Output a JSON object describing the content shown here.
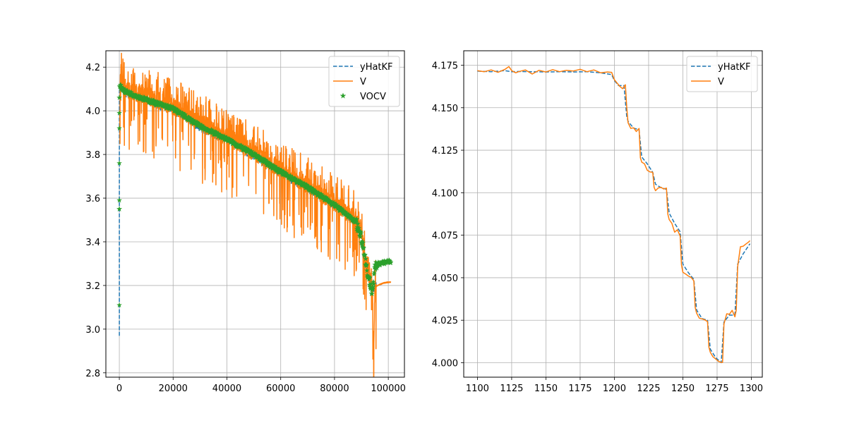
{
  "chart_data": [
    {
      "type": "line",
      "title": "",
      "xlabel": "",
      "ylabel": "",
      "xlim": [
        -5000,
        106000
      ],
      "ylim": [
        2.78,
        4.275
      ],
      "grid": true,
      "legend": "top-right",
      "xticks": [
        0,
        20000,
        40000,
        60000,
        80000,
        100000
      ],
      "xtick_labels": [
        "0",
        "20000",
        "40000",
        "60000",
        "80000",
        "100000"
      ],
      "yticks": [
        2.8,
        3.0,
        3.2,
        3.4,
        3.6,
        3.8,
        4.0,
        4.2
      ],
      "ytick_labels": [
        "2.8",
        "3.0",
        "3.2",
        "3.4",
        "3.6",
        "3.8",
        "4.0",
        "4.2"
      ],
      "series": [
        {
          "name": "yHatKF",
          "style": "dashed",
          "color": "#1f77b4",
          "x": [
            0,
            0,
            0,
            0,
            0,
            500,
            2000,
            10000,
            20000,
            30000,
            40000,
            50000,
            60000,
            70000,
            80000,
            88000,
            90000,
            91000,
            92000,
            93000,
            94000,
            94500,
            95000,
            96000,
            98000,
            100000,
            101000
          ],
          "y": [
            2.97,
            3.5,
            3.9,
            4.05,
            4.1,
            4.1,
            4.08,
            4.04,
            4.0,
            3.92,
            3.86,
            3.79,
            3.71,
            3.64,
            3.56,
            3.49,
            3.42,
            3.35,
            3.27,
            3.22,
            3.18,
            3.17,
            3.2,
            3.2,
            3.21,
            3.215,
            3.215
          ]
        },
        {
          "name": "V",
          "style": "solid",
          "color": "#ff7f0e",
          "x": [
            0,
            500,
            2000,
            10000,
            20000,
            30000,
            40000,
            50000,
            60000,
            70000,
            80000,
            88000,
            90000,
            92000,
            94000,
            94500,
            95000,
            96000,
            98000,
            100000,
            101000
          ],
          "y": [
            4.1,
            4.15,
            4.1,
            4.07,
            4.02,
            3.95,
            3.88,
            3.81,
            3.73,
            3.66,
            3.58,
            3.5,
            3.43,
            3.29,
            3.2,
            2.86,
            3.19,
            3.2,
            3.21,
            3.215,
            3.215
          ],
          "min_envelope": [
            3.95,
            3.88,
            3.76,
            3.7,
            3.62,
            3.56,
            3.5,
            3.4,
            3.3,
            3.2,
            3.0,
            2.86
          ],
          "max_envelope": [
            4.21,
            4.2,
            4.15,
            4.08,
            4.0,
            3.93,
            3.88,
            3.8,
            3.72,
            3.65,
            3.58,
            3.5
          ]
        },
        {
          "name": "VOCV",
          "style": "star-markers",
          "color": "#2ca02c",
          "x": [
            0,
            0,
            0,
            0,
            0,
            0,
            0,
            0,
            500,
            2000,
            10000,
            20000,
            30000,
            40000,
            50000,
            60000,
            70000,
            80000,
            85000,
            88000,
            90000,
            91000,
            92000,
            93000,
            94000,
            95000,
            96000,
            98000,
            100000,
            101000
          ],
          "y": [
            3.11,
            3.55,
            3.55,
            3.59,
            3.76,
            3.92,
            3.99,
            4.06,
            4.11,
            4.09,
            4.05,
            4.01,
            3.93,
            3.87,
            3.8,
            3.72,
            3.65,
            3.57,
            3.52,
            3.49,
            3.42,
            3.36,
            3.27,
            3.22,
            3.17,
            3.27,
            3.3,
            3.305,
            3.31,
            3.31
          ]
        }
      ]
    },
    {
      "type": "line",
      "title": "",
      "xlabel": "",
      "ylabel": "",
      "xlim": [
        1090,
        1308
      ],
      "ylim": [
        3.9915,
        4.1835
      ],
      "grid": true,
      "legend": "top-right",
      "xticks": [
        1100,
        1125,
        1150,
        1175,
        1200,
        1225,
        1250,
        1275,
        1300
      ],
      "xtick_labels": [
        "1100",
        "1125",
        "1150",
        "1175",
        "1200",
        "1225",
        "1250",
        "1275",
        "1300"
      ],
      "yticks": [
        4.0,
        4.025,
        4.05,
        4.075,
        4.1,
        4.125,
        4.15,
        4.175
      ],
      "ytick_labels": [
        "4.000",
        "4.025",
        "4.050",
        "4.075",
        "4.100",
        "4.125",
        "4.150",
        "4.175"
      ],
      "series": [
        {
          "name": "yHatKF",
          "style": "dashed",
          "color": "#1f77b4",
          "x": [
            1100,
            1110,
            1120,
            1125,
            1130,
            1140,
            1150,
            1160,
            1170,
            1180,
            1190,
            1198,
            1200,
            1203,
            1207,
            1209,
            1210,
            1214,
            1218,
            1220,
            1224,
            1228,
            1230,
            1234,
            1238,
            1240,
            1244,
            1248,
            1250,
            1254,
            1258,
            1260,
            1264,
            1268,
            1270,
            1274,
            1278,
            1280,
            1284,
            1288,
            1290,
            1294,
            1299
          ],
          "y": [
            4.1715,
            4.1712,
            4.1718,
            4.1712,
            4.1713,
            4.1712,
            4.171,
            4.1712,
            4.171,
            4.1712,
            4.1705,
            4.1695,
            4.166,
            4.163,
            4.163,
            4.145,
            4.142,
            4.138,
            4.137,
            4.121,
            4.117,
            4.112,
            4.105,
            4.103,
            4.102,
            4.088,
            4.082,
            4.077,
            4.058,
            4.053,
            4.049,
            4.031,
            4.026,
            4.025,
            4.008,
            4.003,
            4.0,
            4.024,
            4.028,
            4.028,
            4.058,
            4.064,
            4.07
          ]
        },
        {
          "name": "V",
          "style": "solid",
          "color": "#ff7f0e",
          "x": [
            1100,
            1105,
            1110,
            1115,
            1120,
            1123,
            1125,
            1128,
            1130,
            1135,
            1140,
            1145,
            1150,
            1155,
            1160,
            1165,
            1170,
            1175,
            1180,
            1185,
            1190,
            1195,
            1198,
            1200,
            1202,
            1204,
            1206,
            1208,
            1209,
            1210,
            1212,
            1214,
            1216,
            1218,
            1219,
            1220,
            1222,
            1224,
            1226,
            1228,
            1229,
            1230,
            1232,
            1234,
            1236,
            1238,
            1239,
            1240,
            1242,
            1244,
            1246,
            1248,
            1249,
            1250,
            1252,
            1254,
            1256,
            1258,
            1259,
            1260,
            1262,
            1264,
            1266,
            1268,
            1269,
            1270,
            1272,
            1274,
            1276,
            1278,
            1279,
            1280,
            1282,
            1284,
            1286,
            1288,
            1289,
            1290,
            1292,
            1294,
            1296,
            1298,
            1299
          ],
          "y": [
            4.1718,
            4.1712,
            4.1722,
            4.1708,
            4.1725,
            4.1742,
            4.1718,
            4.1705,
            4.1712,
            4.1722,
            4.1698,
            4.172,
            4.171,
            4.1724,
            4.1712,
            4.172,
            4.1716,
            4.1726,
            4.1712,
            4.1722,
            4.1705,
            4.171,
            4.1708,
            4.1665,
            4.1645,
            4.1625,
            4.1612,
            4.1635,
            4.1505,
            4.1412,
            4.1378,
            4.1382,
            4.136,
            4.1378,
            4.1205,
            4.118,
            4.117,
            4.1132,
            4.1122,
            4.112,
            4.1032,
            4.1012,
            4.1028,
            4.1032,
            4.1022,
            4.1027,
            4.0875,
            4.0842,
            4.082,
            4.0768,
            4.0782,
            4.0745,
            4.0575,
            4.0532,
            4.0522,
            4.051,
            4.0502,
            4.0482,
            4.0325,
            4.0292,
            4.0262,
            4.0258,
            4.0252,
            4.0242,
            4.0092,
            4.0062,
            4.0035,
            4.0022,
            4.0008,
            4.0002,
            4.0002,
            4.0228,
            4.0288,
            4.0285,
            4.0308,
            4.027,
            4.031,
            4.0565,
            4.0682,
            4.0685,
            4.0698,
            4.071,
            4.0718
          ]
        }
      ]
    }
  ]
}
